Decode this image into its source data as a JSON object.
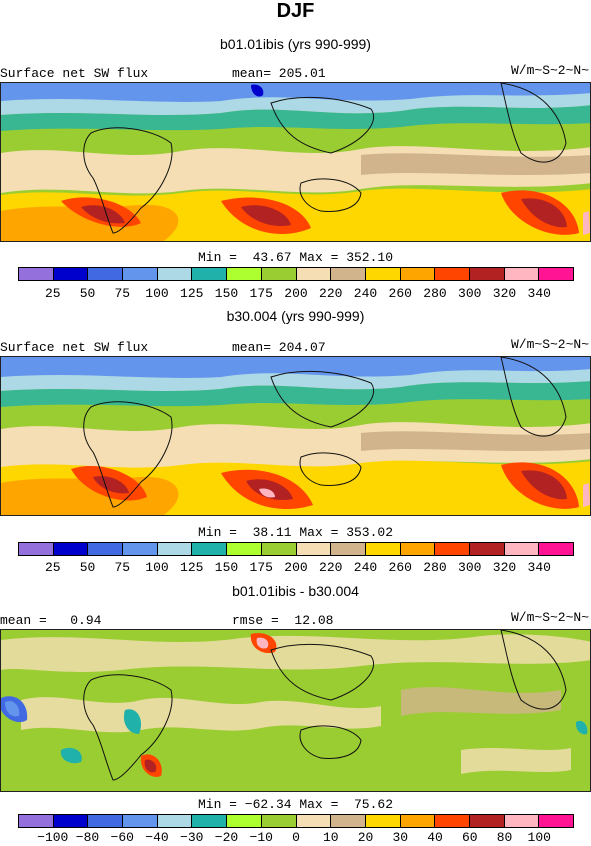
{
  "header": {
    "title": "DJF"
  },
  "panels": [
    {
      "subtitle": "b01.01ibis (yrs 990-999)",
      "left_label": "Surface net SW flux",
      "center_label": "mean= 205.01",
      "units": "W/m~S~2~N~",
      "minmax": "Min =  43.67 Max = 352.10",
      "colorbar_labels": [
        "25",
        "50",
        "75",
        "100",
        "125",
        "150",
        "175",
        "200",
        "220",
        "240",
        "260",
        "280",
        "300",
        "320",
        "340"
      ]
    },
    {
      "subtitle": "b30.004 (yrs 990-999)",
      "left_label": "Surface net SW flux",
      "center_label": "mean= 204.07",
      "units": "W/m~S~2~N~",
      "minmax": "Min =  38.11 Max = 353.02",
      "colorbar_labels": [
        "25",
        "50",
        "75",
        "100",
        "125",
        "150",
        "175",
        "200",
        "220",
        "240",
        "260",
        "280",
        "300",
        "320",
        "340"
      ]
    },
    {
      "subtitle": "b01.01ibis - b30.004",
      "left_label": "mean =   0.94",
      "center_label": "rmse =  12.08",
      "units": "W/m~S~2~N~",
      "minmax": "Min = −62.34 Max =  75.62",
      "colorbar_labels": [
        "−100",
        "−80",
        "−60",
        "−40",
        "−30",
        "−20",
        "−10",
        "0",
        "10",
        "20",
        "30",
        "40",
        "60",
        "80",
        "100"
      ]
    }
  ],
  "colors": [
    "#9370db",
    "#0000cd",
    "#4169e1",
    "#6495ed",
    "#add8e6",
    "#20b2aa",
    "#adff2f",
    "#9acd32",
    "#f5deb3",
    "#d2b48c",
    "#ffd700",
    "#ffa500",
    "#ff4500",
    "#b22222",
    "#ffb6c1",
    "#ff1493"
  ],
  "chart_data": [
    {
      "type": "heatmap",
      "title": "b01.01ibis (yrs 990-999)",
      "variable": "Surface net SW flux",
      "units": "W/m~S~2~N~",
      "mean": 205.01,
      "min": 43.67,
      "max": 352.1,
      "levels": [
        25,
        50,
        75,
        100,
        125,
        150,
        175,
        200,
        220,
        240,
        260,
        280,
        300,
        320,
        340
      ]
    },
    {
      "type": "heatmap",
      "title": "b30.004 (yrs 990-999)",
      "variable": "Surface net SW flux",
      "units": "W/m~S~2~N~",
      "mean": 204.07,
      "min": 38.11,
      "max": 353.02,
      "levels": [
        25,
        50,
        75,
        100,
        125,
        150,
        175,
        200,
        220,
        240,
        260,
        280,
        300,
        320,
        340
      ]
    },
    {
      "type": "heatmap",
      "title": "b01.01ibis - b30.004",
      "units": "W/m~S~2~N~",
      "mean": 0.94,
      "rmse": 12.08,
      "min": -62.34,
      "max": 75.62,
      "levels": [
        -100,
        -80,
        -60,
        -40,
        -30,
        -20,
        -10,
        0,
        10,
        20,
        30,
        40,
        60,
        80,
        100
      ]
    }
  ]
}
